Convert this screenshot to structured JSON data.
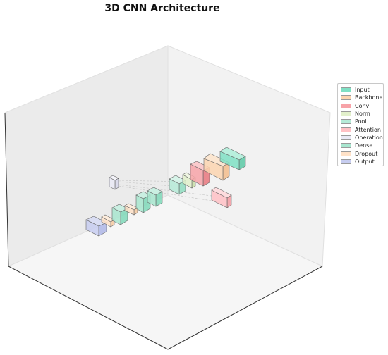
{
  "title": "3D CNN Architecture",
  "legend": [
    {
      "label": "Input",
      "color": "#7fe0c4"
    },
    {
      "label": "Backbone",
      "color": "#fcd5b0"
    },
    {
      "label": "Conv",
      "color": "#f7a3a8"
    },
    {
      "label": "Norm",
      "color": "#e2f0cb"
    },
    {
      "label": "Pool",
      "color": "#b5ead7"
    },
    {
      "label": "Attention",
      "color": "#ffc1c5"
    },
    {
      "label": "Operation",
      "color": "#eaeaf6"
    },
    {
      "label": "Dense",
      "color": "#a8e6cf"
    },
    {
      "label": "Dropout",
      "color": "#ffe2c8"
    },
    {
      "label": "Output",
      "color": "#c7cdf0"
    }
  ]
}
